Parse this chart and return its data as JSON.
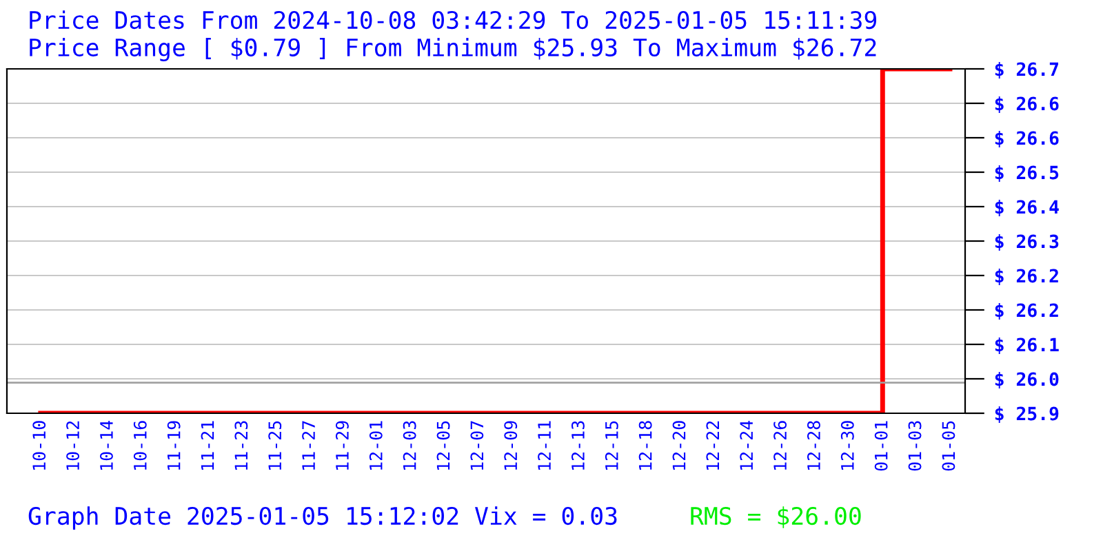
{
  "chart_data": {
    "type": "step",
    "title": "Price Dates From 2024-10-08 03:42:29 To 2025-01-05 15:11:39",
    "subtitle": "Price Range [ $0.79 ] From Minimum $25.93 To Maximum $26.72",
    "categories": [
      "10-10",
      "10-12",
      "10-14",
      "10-16",
      "11-19",
      "11-21",
      "11-23",
      "11-25",
      "11-27",
      "11-29",
      "12-01",
      "12-03",
      "12-05",
      "12-07",
      "12-09",
      "12-11",
      "12-13",
      "12-15",
      "12-18",
      "12-20",
      "12-22",
      "12-24",
      "12-26",
      "12-28",
      "12-30",
      "01-01",
      "01-03",
      "01-05"
    ],
    "series": [
      {
        "color": "#ff0000",
        "values": [
          25.93,
          25.93,
          25.93,
          25.93,
          25.93,
          25.93,
          25.93,
          25.93,
          25.93,
          25.93,
          25.93,
          25.93,
          25.93,
          25.93,
          25.93,
          25.93,
          25.93,
          25.93,
          25.93,
          25.93,
          25.93,
          25.93,
          25.93,
          25.93,
          25.93,
          26.72,
          26.72,
          26.72
        ]
      }
    ],
    "ylim": [
      25.93,
      26.72
    ],
    "yticks": [
      {
        "value": 25.93,
        "label": "$ 25.9"
      },
      {
        "value": 26.009,
        "label": "$ 26.0"
      },
      {
        "value": 26.088,
        "label": "$ 26.1"
      },
      {
        "value": 26.167,
        "label": "$ 26.2"
      },
      {
        "value": 26.246,
        "label": "$ 26.2"
      },
      {
        "value": 26.325,
        "label": "$ 26.3"
      },
      {
        "value": 26.404,
        "label": "$ 26.4"
      },
      {
        "value": 26.483,
        "label": "$ 26.5"
      },
      {
        "value": 26.562,
        "label": "$ 26.6"
      },
      {
        "value": 26.641,
        "label": "$ 26.6"
      },
      {
        "value": 26.72,
        "label": "$ 26.7"
      }
    ],
    "grid": "y",
    "ref_lines": [
      {
        "axis": "y",
        "value": 26.0,
        "color": "#a0a0a0"
      }
    ],
    "annotations": [
      "Graph Date 2025-01-05 15:12:02 Vix = 0.03",
      "RMS = $26.00"
    ]
  }
}
